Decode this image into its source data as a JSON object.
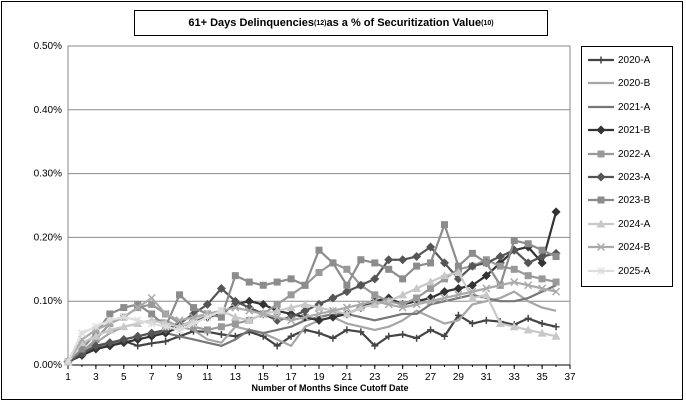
{
  "title": {
    "main": "61+ Days Delinquencies",
    "sup1": "(12)",
    "mid": " as a % of Securitization Value",
    "sup2": "(10)"
  },
  "chart_data": {
    "type": "line",
    "title": "61+ Days Delinquencies(12) as a % of Securitization Value(10)",
    "xlabel": "Number of Months Since Cutoff Date",
    "ylabel": "",
    "xlim": [
      1,
      37
    ],
    "ylim": [
      0,
      0.5
    ],
    "x_ticks": [
      "1",
      "3",
      "5",
      "7",
      "9",
      "11",
      "13",
      "15",
      "17",
      "19",
      "21",
      "23",
      "25",
      "27",
      "29",
      "31",
      "33",
      "35",
      "37"
    ],
    "y_ticks": [
      "0.00%",
      "0.10%",
      "0.20%",
      "0.30%",
      "0.40%",
      "0.50%"
    ],
    "grid": "horizontal",
    "legend": "right",
    "series": [
      {
        "name": "2020-A",
        "color": "#444444",
        "marker": "plus",
        "values": [
          0.005,
          0.018,
          0.028,
          0.032,
          0.038,
          0.03,
          0.034,
          0.037,
          0.045,
          0.053,
          0.052,
          0.048,
          0.045,
          0.052,
          0.045,
          0.03,
          0.045,
          0.055,
          0.05,
          0.042,
          0.055,
          0.052,
          0.03,
          0.045,
          0.048,
          0.042,
          0.055,
          0.045,
          0.078,
          0.065,
          0.07,
          0.068,
          0.063,
          0.073,
          0.065,
          0.06
        ]
      },
      {
        "name": "2020-B",
        "color": "#a6a6a6",
        "marker": "none",
        "values": [
          0.005,
          0.02,
          0.035,
          0.05,
          0.06,
          0.065,
          0.07,
          0.07,
          0.06,
          0.055,
          0.04,
          0.035,
          0.06,
          0.055,
          0.05,
          0.04,
          0.03,
          0.06,
          0.07,
          0.075,
          0.065,
          0.06,
          0.055,
          0.06,
          0.07,
          0.085,
          0.075,
          0.065,
          0.07,
          0.095,
          0.1,
          0.105,
          0.115,
          0.1,
          0.09,
          0.085
        ]
      },
      {
        "name": "2021-A",
        "color": "#777777",
        "marker": "none",
        "values": [
          0.005,
          0.015,
          0.028,
          0.032,
          0.04,
          0.045,
          0.05,
          0.05,
          0.045,
          0.04,
          0.035,
          0.03,
          0.04,
          0.055,
          0.05,
          0.055,
          0.06,
          0.07,
          0.075,
          0.08,
          0.08,
          0.075,
          0.07,
          0.075,
          0.08,
          0.08,
          0.095,
          0.1,
          0.105,
          0.11,
          0.105,
          0.1,
          0.1,
          0.105,
          0.115,
          0.125
        ]
      },
      {
        "name": "2021-B",
        "color": "#333333",
        "marker": "diamond",
        "values": [
          0.005,
          0.015,
          0.025,
          0.03,
          0.035,
          0.04,
          0.045,
          0.05,
          0.06,
          0.07,
          0.075,
          0.08,
          0.095,
          0.1,
          0.095,
          0.085,
          0.08,
          0.075,
          0.07,
          0.075,
          0.08,
          0.09,
          0.1,
          0.105,
          0.095,
          0.1,
          0.105,
          0.115,
          0.12,
          0.125,
          0.14,
          0.16,
          0.18,
          0.185,
          0.16,
          0.24
        ]
      },
      {
        "name": "2022-A",
        "color": "#999999",
        "marker": "square",
        "values": [
          0.005,
          0.02,
          0.04,
          0.065,
          0.075,
          0.09,
          0.095,
          0.08,
          0.065,
          0.06,
          0.055,
          0.06,
          0.065,
          0.07,
          0.08,
          0.095,
          0.11,
          0.125,
          0.145,
          0.16,
          0.15,
          0.125,
          0.11,
          0.1,
          0.095,
          0.105,
          0.12,
          0.135,
          0.15,
          0.155,
          0.165,
          0.155,
          0.15,
          0.14,
          0.135,
          0.13
        ]
      },
      {
        "name": "2023-A",
        "color": "#555555",
        "marker": "diamond",
        "values": [
          0.005,
          0.018,
          0.03,
          0.035,
          0.04,
          0.045,
          0.05,
          0.055,
          0.065,
          0.08,
          0.095,
          0.12,
          0.1,
          0.09,
          0.08,
          0.07,
          0.075,
          0.085,
          0.095,
          0.105,
          0.115,
          0.125,
          0.135,
          0.165,
          0.165,
          0.17,
          0.185,
          0.16,
          0.135,
          0.155,
          0.16,
          0.17,
          0.18,
          0.16,
          0.17,
          0.175
        ]
      },
      {
        "name": "2023-B",
        "color": "#8c8c8c",
        "marker": "square",
        "values": [
          0.005,
          0.025,
          0.05,
          0.08,
          0.09,
          0.095,
          0.08,
          0.06,
          0.11,
          0.09,
          0.08,
          0.075,
          0.14,
          0.13,
          0.125,
          0.13,
          0.135,
          0.125,
          0.18,
          0.16,
          0.125,
          0.165,
          0.16,
          0.15,
          0.135,
          0.155,
          0.16,
          0.22,
          0.155,
          0.175,
          0.16,
          0.125,
          0.195,
          0.19,
          0.18,
          0.17
        ]
      },
      {
        "name": "2024-A",
        "color": "#c8c8c8",
        "marker": "triangle",
        "values": [
          0.005,
          0.035,
          0.045,
          0.055,
          0.06,
          0.065,
          0.07,
          0.065,
          0.06,
          0.07,
          0.08,
          0.085,
          0.075,
          0.07,
          0.08,
          0.085,
          0.09,
          0.095,
          0.09,
          0.085,
          0.08,
          0.09,
          0.095,
          0.1,
          0.11,
          0.12,
          0.13,
          0.14,
          0.145,
          0.105,
          0.11,
          0.065,
          0.06,
          0.055,
          0.05,
          0.045
        ]
      },
      {
        "name": "2024-B",
        "color": "#aaaaaa",
        "marker": "x",
        "values": [
          0.005,
          0.04,
          0.055,
          0.065,
          0.075,
          0.09,
          0.105,
          0.08,
          0.07,
          0.075,
          0.08,
          0.085,
          0.09,
          0.085,
          0.08,
          0.075,
          0.07,
          0.075,
          0.08,
          0.085,
          0.09,
          0.095,
          0.1,
          0.095,
          0.09,
          0.095,
          0.1,
          0.105,
          0.11,
          0.115,
          0.12,
          0.125,
          0.13,
          0.125,
          0.12,
          0.115
        ]
      },
      {
        "name": "2025-A",
        "color": "#dddddd",
        "marker": "star",
        "values": [
          0.005,
          0.05,
          0.06,
          0.07,
          0.075,
          0.07,
          0.065,
          0.06,
          0.055,
          0.065,
          0.075,
          0.085
        ]
      }
    ]
  }
}
